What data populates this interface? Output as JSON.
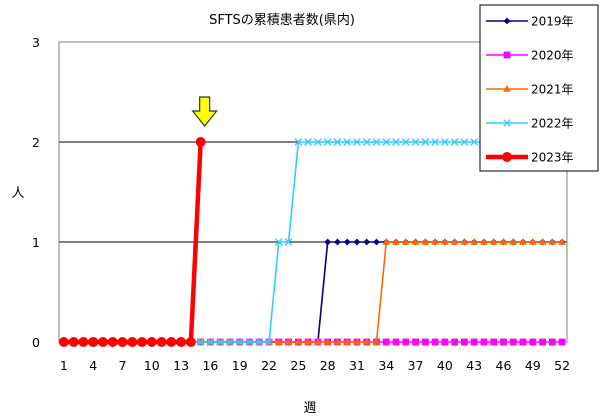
{
  "chart_data": {
    "type": "line",
    "title": "SFTSの累積患者数(県内)",
    "xlabel": "週",
    "ylabel": "人",
    "xlim": [
      1,
      52
    ],
    "ylim": [
      0,
      3
    ],
    "yticks": [
      "0",
      "1",
      "2",
      "3"
    ],
    "xticks": [
      "1",
      "4",
      "7",
      "10",
      "13",
      "16",
      "19",
      "22",
      "25",
      "28",
      "31",
      "34",
      "37",
      "40",
      "43",
      "46",
      "49",
      "52"
    ],
    "grid": "horizontal",
    "legend_position": "right",
    "annotation": "yellow-down-arrow",
    "annotation_week": 15,
    "series": [
      {
        "name": "2019年",
        "color": "#000080",
        "marker": "diamond",
        "x": [
          1,
          2,
          3,
          4,
          5,
          6,
          7,
          8,
          9,
          10,
          11,
          12,
          13,
          14,
          15,
          16,
          17,
          18,
          19,
          20,
          21,
          22,
          23,
          24,
          25,
          26,
          27,
          28,
          29,
          30,
          31,
          32,
          33,
          34,
          35,
          36,
          37,
          38,
          39,
          40,
          41,
          42,
          43,
          44,
          45,
          46,
          47,
          48,
          49,
          50,
          51,
          52
        ],
        "values": [
          0,
          0,
          0,
          0,
          0,
          0,
          0,
          0,
          0,
          0,
          0,
          0,
          0,
          0,
          0,
          0,
          0,
          0,
          0,
          0,
          0,
          0,
          0,
          0,
          0,
          0,
          0,
          1,
          1,
          1,
          1,
          1,
          1,
          1,
          1,
          1,
          1,
          1,
          1,
          1,
          1,
          1,
          1,
          1,
          1,
          1,
          1,
          1,
          1,
          1,
          1,
          1
        ]
      },
      {
        "name": "2020年",
        "color": "#ff00ff",
        "marker": "square",
        "x": [
          1,
          2,
          3,
          4,
          5,
          6,
          7,
          8,
          9,
          10,
          11,
          12,
          13,
          14,
          15,
          16,
          17,
          18,
          19,
          20,
          21,
          22,
          23,
          24,
          25,
          26,
          27,
          28,
          29,
          30,
          31,
          32,
          33,
          34,
          35,
          36,
          37,
          38,
          39,
          40,
          41,
          42,
          43,
          44,
          45,
          46,
          47,
          48,
          49,
          50,
          51,
          52
        ],
        "values": [
          0,
          0,
          0,
          0,
          0,
          0,
          0,
          0,
          0,
          0,
          0,
          0,
          0,
          0,
          0,
          0,
          0,
          0,
          0,
          0,
          0,
          0,
          0,
          0,
          0,
          0,
          0,
          0,
          0,
          0,
          0,
          0,
          0,
          0,
          0,
          0,
          0,
          0,
          0,
          0,
          0,
          0,
          0,
          0,
          0,
          0,
          0,
          0,
          0,
          0,
          0,
          0
        ]
      },
      {
        "name": "2021年",
        "color": "#ff6600",
        "marker": "triangle",
        "x": [
          1,
          2,
          3,
          4,
          5,
          6,
          7,
          8,
          9,
          10,
          11,
          12,
          13,
          14,
          15,
          16,
          17,
          18,
          19,
          20,
          21,
          22,
          23,
          24,
          25,
          26,
          27,
          28,
          29,
          30,
          31,
          32,
          33,
          34,
          35,
          36,
          37,
          38,
          39,
          40,
          41,
          42,
          43,
          44,
          45,
          46,
          47,
          48,
          49,
          50,
          51,
          52
        ],
        "values": [
          0,
          0,
          0,
          0,
          0,
          0,
          0,
          0,
          0,
          0,
          0,
          0,
          0,
          0,
          0,
          0,
          0,
          0,
          0,
          0,
          0,
          0,
          0,
          0,
          0,
          0,
          0,
          0,
          0,
          0,
          0,
          0,
          0,
          1,
          1,
          1,
          1,
          1,
          1,
          1,
          1,
          1,
          1,
          1,
          1,
          1,
          1,
          1,
          1,
          1,
          1,
          1
        ]
      },
      {
        "name": "2022年",
        "color": "#33ccff",
        "marker": "x",
        "x": [
          1,
          2,
          3,
          4,
          5,
          6,
          7,
          8,
          9,
          10,
          11,
          12,
          13,
          14,
          15,
          16,
          17,
          18,
          19,
          20,
          21,
          22,
          23,
          24,
          25,
          26,
          27,
          28,
          29,
          30,
          31,
          32,
          33,
          34,
          35,
          36,
          37,
          38,
          39,
          40,
          41,
          42,
          43,
          44,
          45,
          46,
          47,
          48,
          49,
          50,
          51,
          52
        ],
        "values": [
          0,
          0,
          0,
          0,
          0,
          0,
          0,
          0,
          0,
          0,
          0,
          0,
          0,
          0,
          0,
          0,
          0,
          0,
          0,
          0,
          0,
          0,
          1,
          1,
          2,
          2,
          2,
          2,
          2,
          2,
          2,
          2,
          2,
          2,
          2,
          2,
          2,
          2,
          2,
          2,
          2,
          2,
          2,
          2,
          2,
          2,
          2,
          2,
          2,
          2,
          2,
          2
        ]
      },
      {
        "name": "2023年",
        "color": "#ff0000",
        "marker": "circle",
        "x": [
          1,
          2,
          3,
          4,
          5,
          6,
          7,
          8,
          9,
          10,
          11,
          12,
          13,
          14,
          15
        ],
        "values": [
          0,
          0,
          0,
          0,
          0,
          0,
          0,
          0,
          0,
          0,
          0,
          0,
          0,
          0,
          2
        ]
      }
    ]
  }
}
